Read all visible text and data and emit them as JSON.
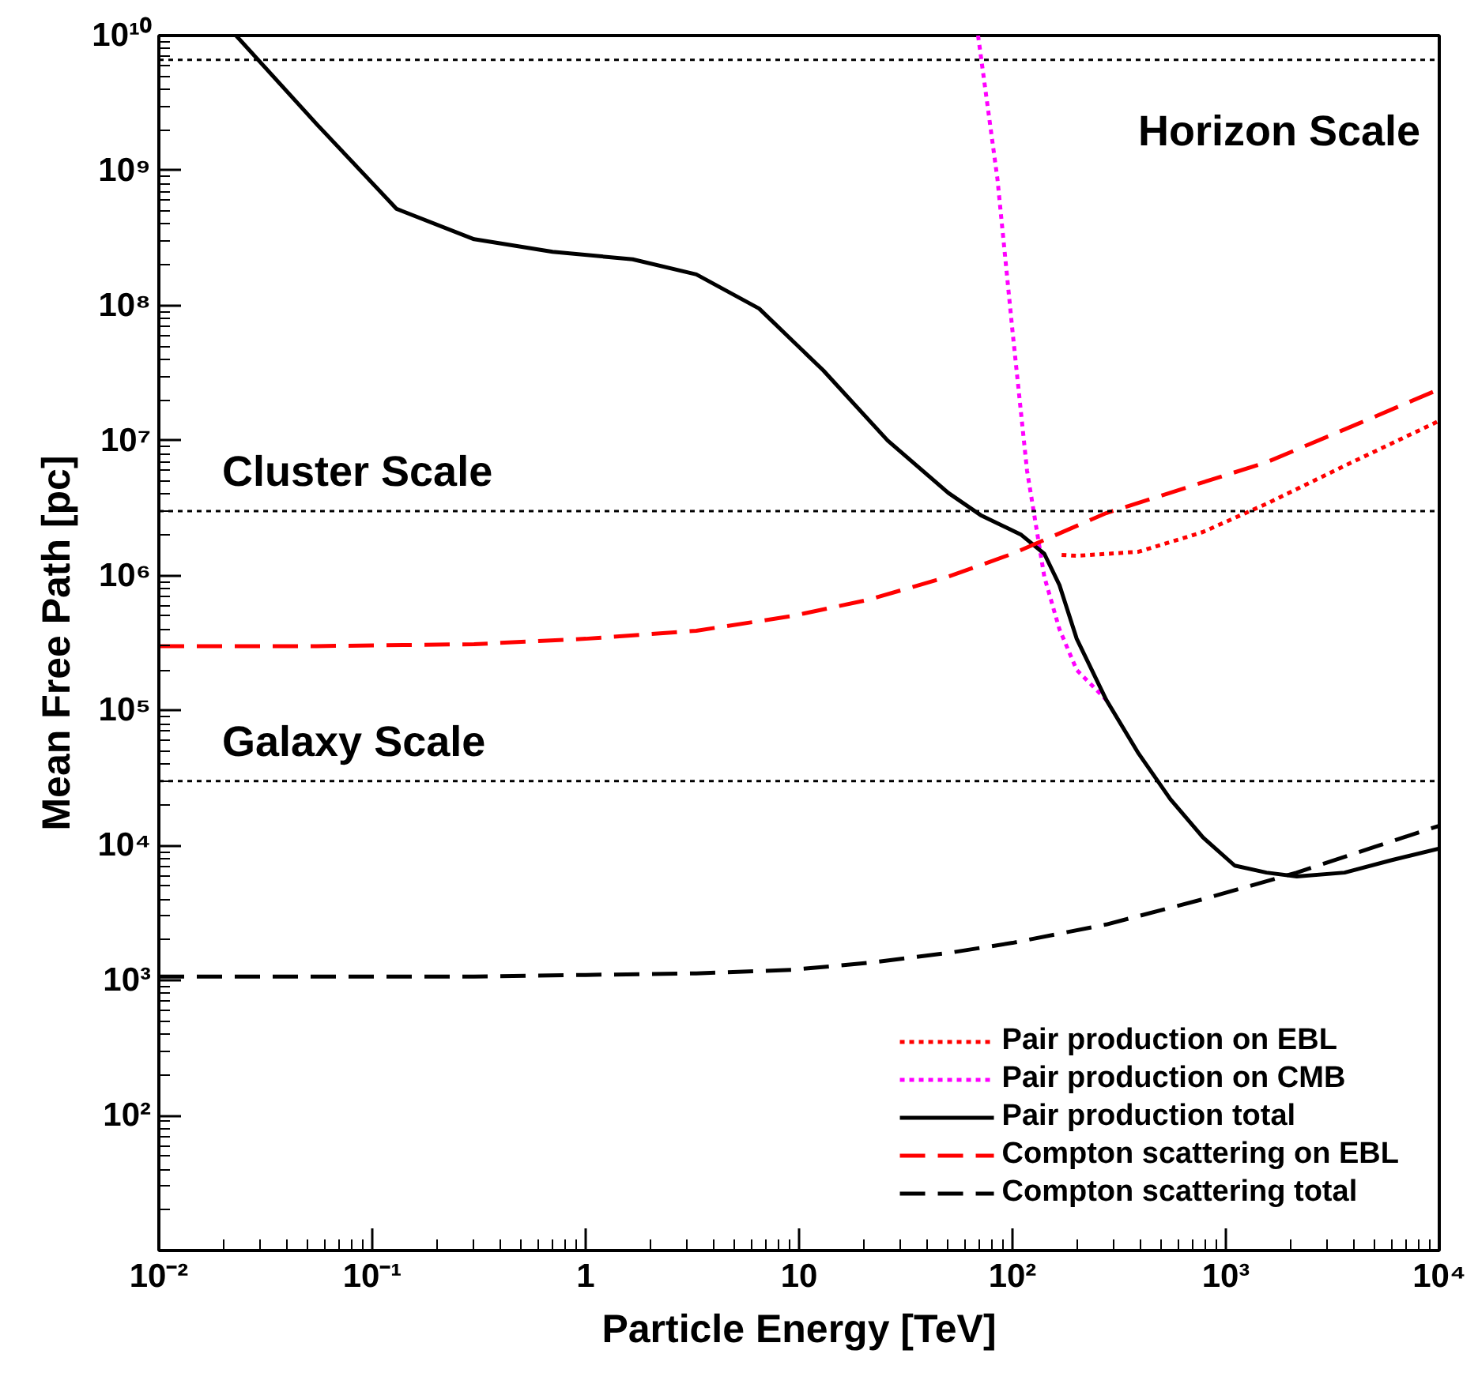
{
  "chart_data": {
    "type": "line",
    "xlabel": "Particle Energy [TeV]",
    "ylabel": "Mean Free Path [pc]",
    "log": "xy",
    "grid": false,
    "legend": "bottom right",
    "xlim": [
      0.01,
      10000
    ],
    "ylim": [
      10,
      10000000000
    ],
    "xticks": [
      {
        "value": 0.01,
        "label": "10⁻²"
      },
      {
        "value": 0.1,
        "label": "10⁻¹"
      },
      1,
      10,
      {
        "value": 100,
        "label": "10²"
      },
      {
        "value": 1000,
        "label": "10³"
      },
      {
        "value": 10000,
        "label": "10⁴"
      }
    ],
    "yticks": [
      {
        "value": 100,
        "label": "10²"
      },
      {
        "value": 1000,
        "label": "10³"
      },
      {
        "value": 10000,
        "label": "10⁴"
      },
      {
        "value": 100000,
        "label": "10⁵"
      },
      {
        "value": 1000000,
        "label": "10⁶"
      },
      {
        "value": 10000000,
        "label": "10⁷"
      },
      {
        "value": 100000000,
        "label": "10⁸"
      },
      {
        "value": 1000000000,
        "label": "10⁹"
      },
      {
        "value": 10000000000,
        "label": "10¹⁰"
      }
    ],
    "ref_lines": [
      {
        "axis": "y",
        "value": 6600000000,
        "label": "Horizon Scale",
        "line_style": "dotted",
        "color": "#000000"
      },
      {
        "axis": "y",
        "value": 3000000,
        "label": "Cluster Scale",
        "line_style": "dotted",
        "color": "#000000"
      },
      {
        "axis": "y",
        "value": 30000,
        "label": "Galaxy Scale",
        "line_style": "dotted",
        "color": "#000000"
      }
    ],
    "series": [
      {
        "name": "Pair production on EBL",
        "color": "#ff0000",
        "line_style": "dotted",
        "x": [
          170,
          200,
          390,
          780,
          1550,
          3600,
          10000
        ],
        "values": [
          1420000,
          1400000,
          1500000,
          2100000,
          3400000,
          6500000,
          14000000
        ]
      },
      {
        "name": "Pair production on CMB",
        "color": "#ff00ff",
        "line_style": "dotted",
        "x": [
          69,
          85,
          100,
          117,
          141,
          166,
          200,
          275
        ],
        "values": [
          10000000000,
          870000000,
          65000000,
          6000000,
          980000,
          400000,
          200000,
          120000
        ]
      },
      {
        "name": "Pair production total",
        "color": "#000000",
        "line_style": "solid",
        "x": [
          0.023,
          0.055,
          0.13,
          0.3,
          0.7,
          1.66,
          3.3,
          6.5,
          13,
          26,
          50,
          71,
          110,
          141,
          166,
          200,
          275,
          390,
          550,
          780,
          1100,
          1550,
          2150,
          3600,
          6000,
          10000
        ],
        "values": [
          10000000000,
          2200000000,
          520000000,
          310000000,
          250000000,
          220000000,
          170000000,
          95000000,
          33000000,
          10000000,
          4100000,
          2800000,
          2000000,
          1450000,
          850000,
          340000,
          120000,
          48000,
          22000,
          11500,
          7100,
          6300,
          5900,
          6300,
          7800,
          9500
        ]
      },
      {
        "name": "Compton scattering on EBL",
        "color": "#ff0000",
        "line_style": "dashed",
        "x": [
          0.01,
          0.055,
          0.3,
          1,
          3.3,
          9.2,
          21,
          50,
          100,
          275,
          780,
          1550,
          4250,
          10000
        ],
        "values": [
          300000,
          300000,
          310000,
          340000,
          390000,
          500000,
          660000,
          980000,
          1450000,
          2900000,
          4900000,
          6900000,
          13500000,
          24000000
        ]
      },
      {
        "name": "Compton scattering total",
        "color": "#000000",
        "line_style": "dashed",
        "x": [
          0.01,
          0.3,
          1,
          3.3,
          9.2,
          21,
          50,
          100,
          275,
          780,
          2150,
          5000,
          10000
        ],
        "values": [
          1070,
          1070,
          1100,
          1130,
          1200,
          1350,
          1600,
          1900,
          2600,
          4000,
          6300,
          9800,
          14000
        ]
      }
    ]
  }
}
